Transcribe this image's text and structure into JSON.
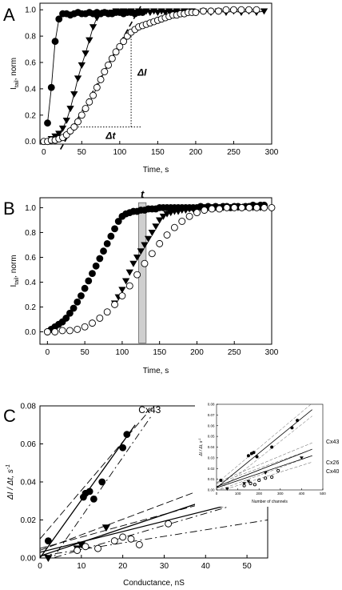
{
  "chart_data": [
    {
      "panel": "A",
      "type": "scatter",
      "xlabel": "Time, s",
      "ylabel_main": "I",
      "ylabel_sub": "tail",
      "ylabel_rest": ", norm",
      "xlim": [
        -5,
        300
      ],
      "ylim": [
        -0.02,
        1.05
      ],
      "xticks": [
        0,
        50,
        100,
        150,
        200,
        250,
        300
      ],
      "yticks": [
        0.0,
        0.2,
        0.4,
        0.6,
        0.8,
        1.0
      ],
      "annotations": [
        "ΔI",
        "Δt"
      ],
      "series": [
        {
          "marker": "filled-circle",
          "x": [
            5,
            10,
            15,
            20,
            25,
            30,
            35,
            40,
            45,
            50,
            55,
            60,
            65,
            70,
            75,
            80,
            85,
            90,
            95,
            100,
            105,
            110,
            115,
            120,
            125,
            130
          ],
          "y": [
            0.14,
            0.41,
            0.76,
            0.93,
            0.97,
            0.97,
            0.96,
            0.97,
            0.98,
            0.97,
            0.97,
            0.98,
            0.97,
            0.98,
            0.97,
            0.98,
            0.97,
            0.97,
            0.98,
            0.98,
            0.97,
            0.98,
            0.98,
            0.97,
            0.98,
            0.98
          ]
        },
        {
          "marker": "filled-triangle-down",
          "x": [
            10,
            15,
            20,
            25,
            30,
            35,
            40,
            45,
            50,
            55,
            60,
            65,
            70,
            75,
            80,
            85,
            90,
            95,
            100,
            105,
            110,
            115,
            120,
            125,
            130,
            135,
            140,
            145,
            150,
            155,
            160,
            165,
            170,
            175,
            180,
            185,
            190,
            195,
            200,
            210,
            220,
            230,
            240,
            250,
            260,
            270,
            280,
            290
          ],
          "y": [
            0.02,
            0.04,
            0.06,
            0.1,
            0.16,
            0.25,
            0.36,
            0.48,
            0.58,
            0.67,
            0.77,
            0.87,
            0.94,
            0.97,
            0.98,
            0.97,
            0.98,
            0.99,
            0.98,
            0.99,
            0.98,
            0.99,
            0.98,
            0.99,
            0.98,
            0.99,
            0.98,
            0.99,
            0.98,
            0.99,
            0.98,
            0.99,
            0.98,
            0.99,
            0.98,
            0.99,
            0.98,
            0.99,
            0.98,
            0.99,
            0.98,
            0.99,
            0.98,
            0.99,
            0.98,
            0.99,
            0.98,
            0.99
          ]
        },
        {
          "marker": "open-circle",
          "x": [
            0,
            5,
            10,
            15,
            20,
            25,
            30,
            35,
            40,
            45,
            50,
            55,
            60,
            65,
            70,
            75,
            80,
            85,
            90,
            95,
            100,
            105,
            110,
            115,
            120,
            125,
            130,
            135,
            140,
            145,
            150,
            155,
            160,
            165,
            170,
            175,
            180,
            185,
            190,
            195,
            200,
            210,
            220,
            230,
            240,
            250,
            260,
            270,
            280
          ],
          "y": [
            0.0,
            0.0,
            0.01,
            0.01,
            0.02,
            0.03,
            0.05,
            0.08,
            0.11,
            0.15,
            0.2,
            0.25,
            0.3,
            0.35,
            0.41,
            0.47,
            0.53,
            0.58,
            0.63,
            0.68,
            0.72,
            0.76,
            0.8,
            0.83,
            0.85,
            0.87,
            0.88,
            0.89,
            0.9,
            0.91,
            0.92,
            0.93,
            0.94,
            0.95,
            0.96,
            0.96,
            0.97,
            0.97,
            0.98,
            0.98,
            0.98,
            0.99,
            0.99,
            0.99,
            1.0,
            1.0,
            1.0,
            1.0,
            1.0
          ]
        }
      ],
      "fit_line": {
        "x": [
          22,
          128
        ],
        "y": [
          -0.06,
          1.03
        ]
      },
      "delta_I_x": 115,
      "delta_I_y": [
        0.11,
        0.84
      ],
      "delta_t_x": [
        45,
        128
      ],
      "delta_t_y": 0.11
    },
    {
      "panel": "B",
      "type": "scatter",
      "xlabel": "Time, s",
      "ylabel_main": "I",
      "ylabel_sub": "tail",
      "ylabel_rest": ", norm",
      "xlim": [
        -10,
        300
      ],
      "ylim": [
        -0.1,
        1.08
      ],
      "xticks": [
        0,
        50,
        100,
        150,
        200,
        250,
        300
      ],
      "yticks": [
        0.0,
        0.2,
        0.4,
        0.6,
        0.8,
        1.0
      ],
      "annotations": [
        "t"
      ],
      "highlight_x": [
        122,
        132
      ],
      "series": [
        {
          "marker": "filled-circle",
          "x": [
            0,
            5,
            10,
            15,
            20,
            25,
            30,
            35,
            40,
            45,
            50,
            55,
            60,
            65,
            70,
            75,
            80,
            85,
            90,
            95,
            100,
            105,
            110,
            115,
            120,
            125,
            130,
            135,
            140,
            145,
            150,
            155,
            160,
            165,
            170,
            175,
            180,
            185,
            190,
            195,
            200,
            205,
            210,
            215,
            220,
            225,
            230,
            235,
            240,
            245,
            250,
            255,
            260,
            265,
            270,
            275,
            280,
            285,
            290
          ],
          "y": [
            0.0,
            0.02,
            0.04,
            0.06,
            0.08,
            0.11,
            0.15,
            0.19,
            0.24,
            0.29,
            0.35,
            0.41,
            0.47,
            0.53,
            0.59,
            0.65,
            0.71,
            0.77,
            0.83,
            0.89,
            0.93,
            0.95,
            0.96,
            0.97,
            0.97,
            0.98,
            0.98,
            0.99,
            0.99,
            0.99,
            1.0,
            1.0,
            1.0,
            1.0,
            1.0,
            1.0,
            1.0,
            1.0,
            1.0,
            1.0,
            1.0,
            1.01,
            1.0,
            1.01,
            1.0,
            1.01,
            1.0,
            1.01,
            1.01,
            1.0,
            1.01,
            1.01,
            1.0,
            1.01,
            1.01,
            1.02,
            1.01,
            1.02,
            1.02
          ]
        },
        {
          "marker": "filled-triangle-down",
          "x": [
            90,
            95,
            100,
            105,
            110,
            115,
            120,
            125,
            130,
            135,
            140,
            145,
            150,
            155,
            160,
            165,
            170,
            175,
            180,
            185,
            190,
            195,
            200,
            205,
            210,
            215,
            220,
            225,
            230,
            235,
            240,
            245,
            250,
            255,
            260,
            265,
            270,
            275,
            280,
            285,
            290
          ],
          "y": [
            0.23,
            0.28,
            0.34,
            0.41,
            0.48,
            0.55,
            0.6,
            0.65,
            0.7,
            0.75,
            0.8,
            0.85,
            0.9,
            0.93,
            0.95,
            0.96,
            0.97,
            0.97,
            0.98,
            0.98,
            0.99,
            0.99,
            0.99,
            1.0,
            1.0,
            1.0,
            1.0,
            1.0,
            1.0,
            1.0,
            1.0,
            1.0,
            1.0,
            1.0,
            1.0,
            1.01,
            1.0,
            1.0,
            1.01,
            1.0,
            1.0
          ]
        },
        {
          "marker": "open-circle",
          "x": [
            0,
            10,
            20,
            30,
            40,
            50,
            60,
            70,
            80,
            90,
            100,
            110,
            120,
            130,
            140,
            150,
            160,
            170,
            180,
            190,
            200,
            210,
            220,
            230,
            240,
            250,
            260,
            270,
            280,
            290,
            300
          ],
          "y": [
            0.0,
            0.0,
            0.01,
            0.01,
            0.02,
            0.04,
            0.07,
            0.11,
            0.16,
            0.22,
            0.29,
            0.37,
            0.46,
            0.55,
            0.63,
            0.71,
            0.78,
            0.84,
            0.89,
            0.93,
            0.96,
            0.98,
            0.99,
            0.99,
            1.0,
            1.0,
            1.0,
            1.0,
            1.0,
            1.0,
            1.0
          ]
        }
      ]
    },
    {
      "panel": "C",
      "type": "scatter",
      "xlabel": "Conductance, nS",
      "ylabel": "ΔI / Δt, s",
      "ylabel_sup": "-1",
      "xlim": [
        0,
        55
      ],
      "ylim": [
        0.0,
        0.08
      ],
      "xticks": [
        0,
        10,
        20,
        30,
        40,
        50
      ],
      "yticks": [
        0.0,
        0.02,
        0.04,
        0.06,
        0.08
      ],
      "series": [
        {
          "name": "Cx43",
          "marker": "filled-circle",
          "x": [
            2,
            10.5,
            11,
            12,
            13,
            15,
            20,
            21
          ],
          "y": [
            0.009,
            0.032,
            0.034,
            0.035,
            0.031,
            0.04,
            0.058,
            0.065
          ],
          "fit": [
            [
              0,
              0.0
            ],
            [
              23,
              0.07
            ]
          ],
          "ci_upper": [
            [
              0,
              0.01
            ],
            [
              27,
              0.079
            ]
          ],
          "ci_lower": [
            [
              0,
              -0.01
            ],
            [
              27,
              0.075
            ]
          ]
        },
        {
          "name": "Cx26",
          "marker": "filled-triangle-down",
          "x": [
            2,
            9,
            10,
            16,
            42
          ],
          "y": [
            0.0,
            0.005,
            0.007,
            0.016,
            0.032
          ],
          "fit": [
            [
              0,
              0.001
            ],
            [
              55,
              0.041
            ]
          ],
          "ci_upper": [
            [
              0,
              0.004
            ],
            [
              55,
              0.049
            ]
          ],
          "ci_lower": [
            [
              0,
              -0.002
            ],
            [
              55,
              0.033
            ]
          ]
        },
        {
          "name": "Cx40",
          "marker": "open-circle",
          "x": [
            9,
            11,
            14,
            18,
            20,
            22,
            24,
            31
          ],
          "y": [
            0.004,
            0.006,
            0.005,
            0.009,
            0.011,
            0.01,
            0.007,
            0.018
          ],
          "fit": [
            [
              0,
              0.003
            ],
            [
              55,
              0.033
            ]
          ],
          "ci_upper": [
            [
              0,
              0.005
            ],
            [
              55,
              0.038
            ]
          ],
          "ci_lower": [
            [
              0,
              0.001
            ],
            [
              55,
              0.02
            ]
          ]
        }
      ],
      "inset": {
        "type": "scatter",
        "xlabel": "Number of channels",
        "ylabel": "ΔI / Δt, s",
        "ylabel_sup": "-1",
        "xlim": [
          0,
          500
        ],
        "ylim": [
          0.0,
          0.08
        ],
        "xticks": [
          0,
          100,
          200,
          300,
          400,
          500
        ],
        "yticks": [
          0.0,
          0.01,
          0.02,
          0.03,
          0.04,
          0.05,
          0.06,
          0.07,
          0.08
        ],
        "series": [
          {
            "name": "Cx43",
            "marker": "filled-circle",
            "x": [
              20,
              150,
              165,
              175,
              190,
              260,
              355,
              380
            ],
            "y": [
              0.009,
              0.032,
              0.034,
              0.035,
              0.031,
              0.04,
              0.058,
              0.065
            ],
            "fit": [
              [
                0,
                0.002
              ],
              [
                450,
                0.075
              ]
            ]
          },
          {
            "name": "Cx26",
            "marker": "filled-triangle-down",
            "x": [
              50,
              130,
              150,
              230,
              400
            ],
            "y": [
              0.001,
              0.006,
              0.008,
              0.016,
              0.03
            ],
            "fit": [
              [
                0,
                0.003
              ],
              [
                450,
                0.038
              ]
            ]
          },
          {
            "name": "Cx40",
            "marker": "open-circle",
            "x": [
              130,
              160,
              180,
              200,
              230,
              260,
              290
            ],
            "y": [
              0.004,
              0.006,
              0.005,
              0.009,
              0.011,
              0.012,
              0.018
            ],
            "fit": [
              [
                0,
                0.002
              ],
              [
                450,
                0.032
              ]
            ]
          }
        ]
      }
    }
  ]
}
